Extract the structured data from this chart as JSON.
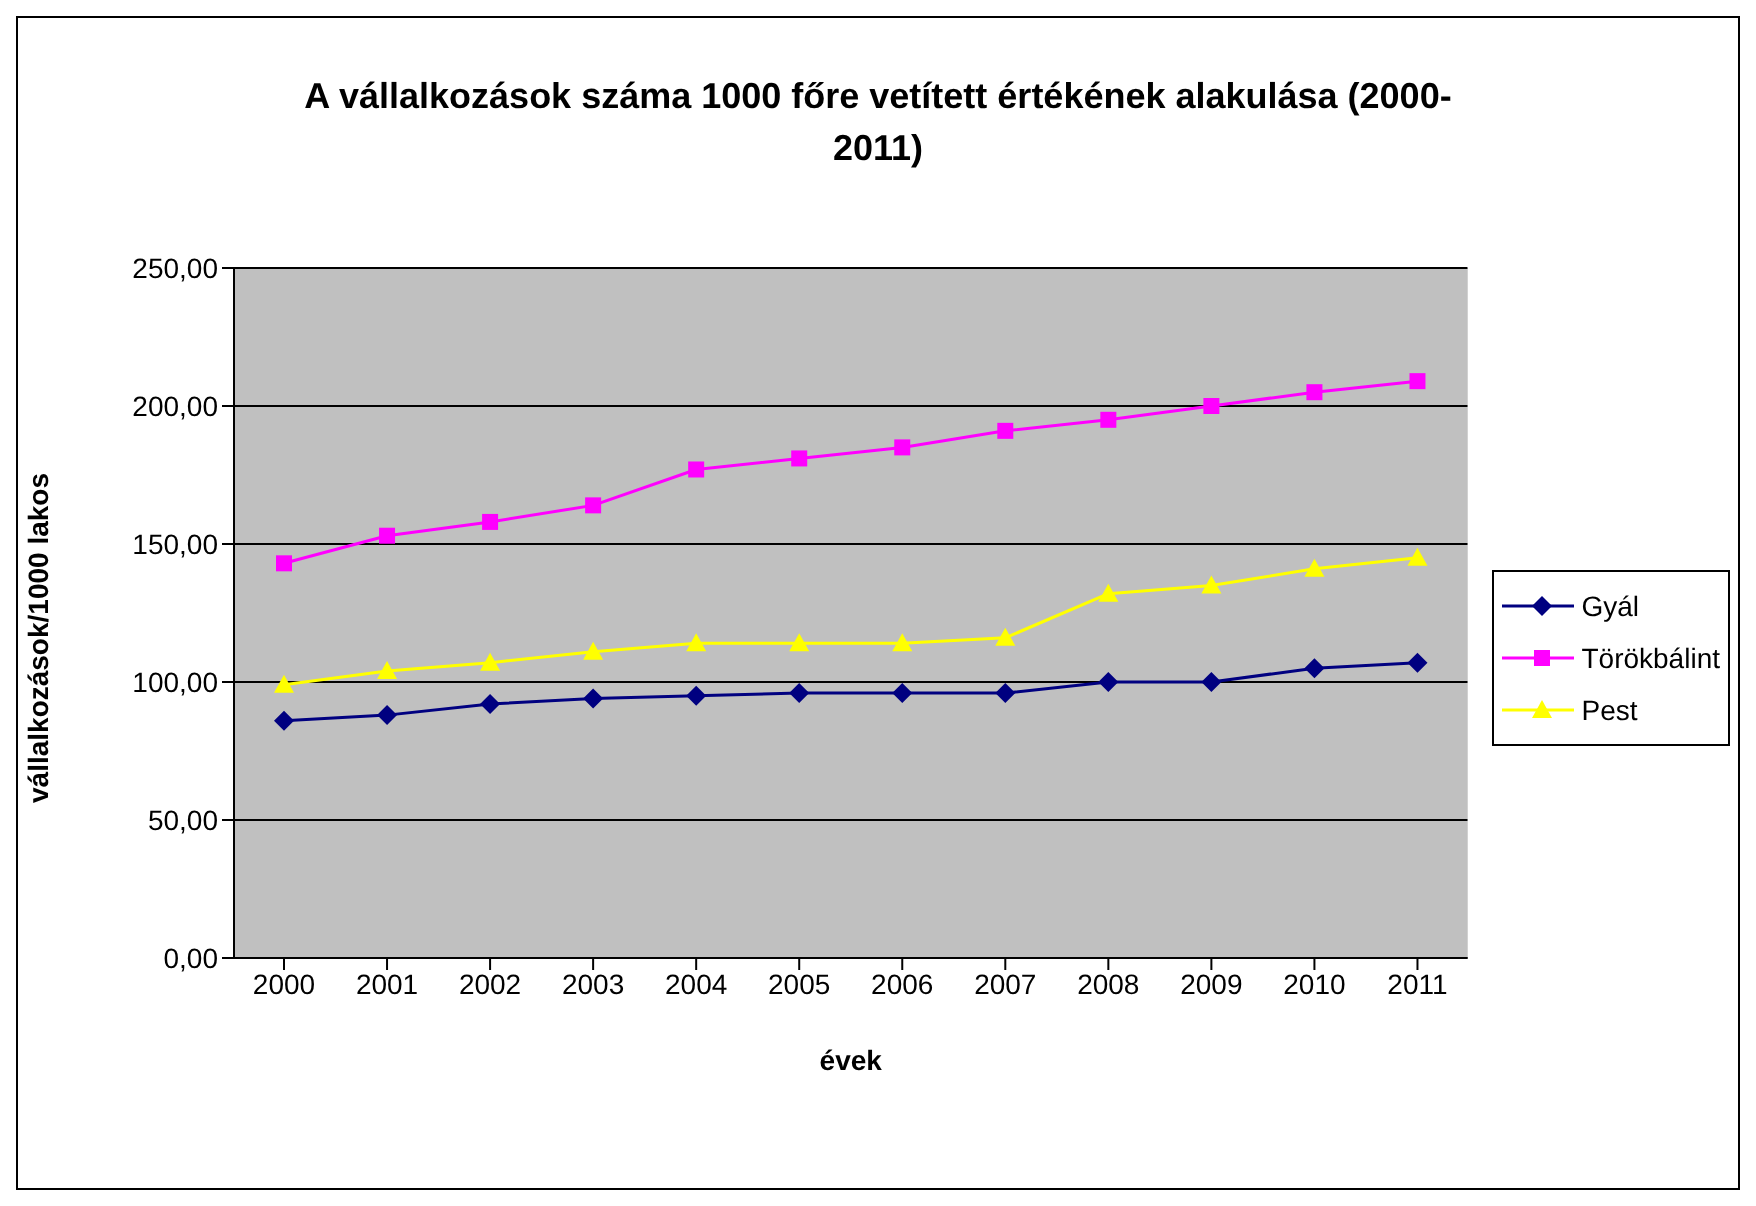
{
  "chart_data": {
    "type": "line",
    "title": "A vállalkozások száma 1000 főre vetített értékének alakulása (2000-2011)",
    "xlabel": "évek",
    "ylabel": "vállalkozások/1000 lakos",
    "categories": [
      "2000",
      "2001",
      "2002",
      "2003",
      "2004",
      "2005",
      "2006",
      "2007",
      "2008",
      "2009",
      "2010",
      "2011"
    ],
    "series": [
      {
        "name": "Gyál",
        "color": "#000080",
        "marker": "diamond",
        "values": [
          86,
          88,
          92,
          94,
          95,
          96,
          96,
          96,
          100,
          100,
          105,
          107
        ]
      },
      {
        "name": "Törökbálint",
        "color": "#ff00ff",
        "marker": "square",
        "values": [
          143,
          153,
          158,
          164,
          177,
          181,
          185,
          191,
          195,
          200,
          205,
          209
        ]
      },
      {
        "name": "Pest",
        "color": "#ffff00",
        "marker": "triangle",
        "values": [
          99,
          104,
          107,
          111,
          114,
          114,
          114,
          116,
          132,
          135,
          141,
          145
        ]
      }
    ],
    "ylim": [
      0,
      250
    ],
    "yticks": [
      {
        "value": 0,
        "label": "0,00"
      },
      {
        "value": 50,
        "label": "50,00"
      },
      {
        "value": 100,
        "label": "100,00"
      },
      {
        "value": 150,
        "label": "150,00"
      },
      {
        "value": 200,
        "label": "200,00"
      },
      {
        "value": 250,
        "label": "250,00"
      }
    ],
    "grid": "y",
    "legend": "right",
    "line_style": "solid"
  }
}
